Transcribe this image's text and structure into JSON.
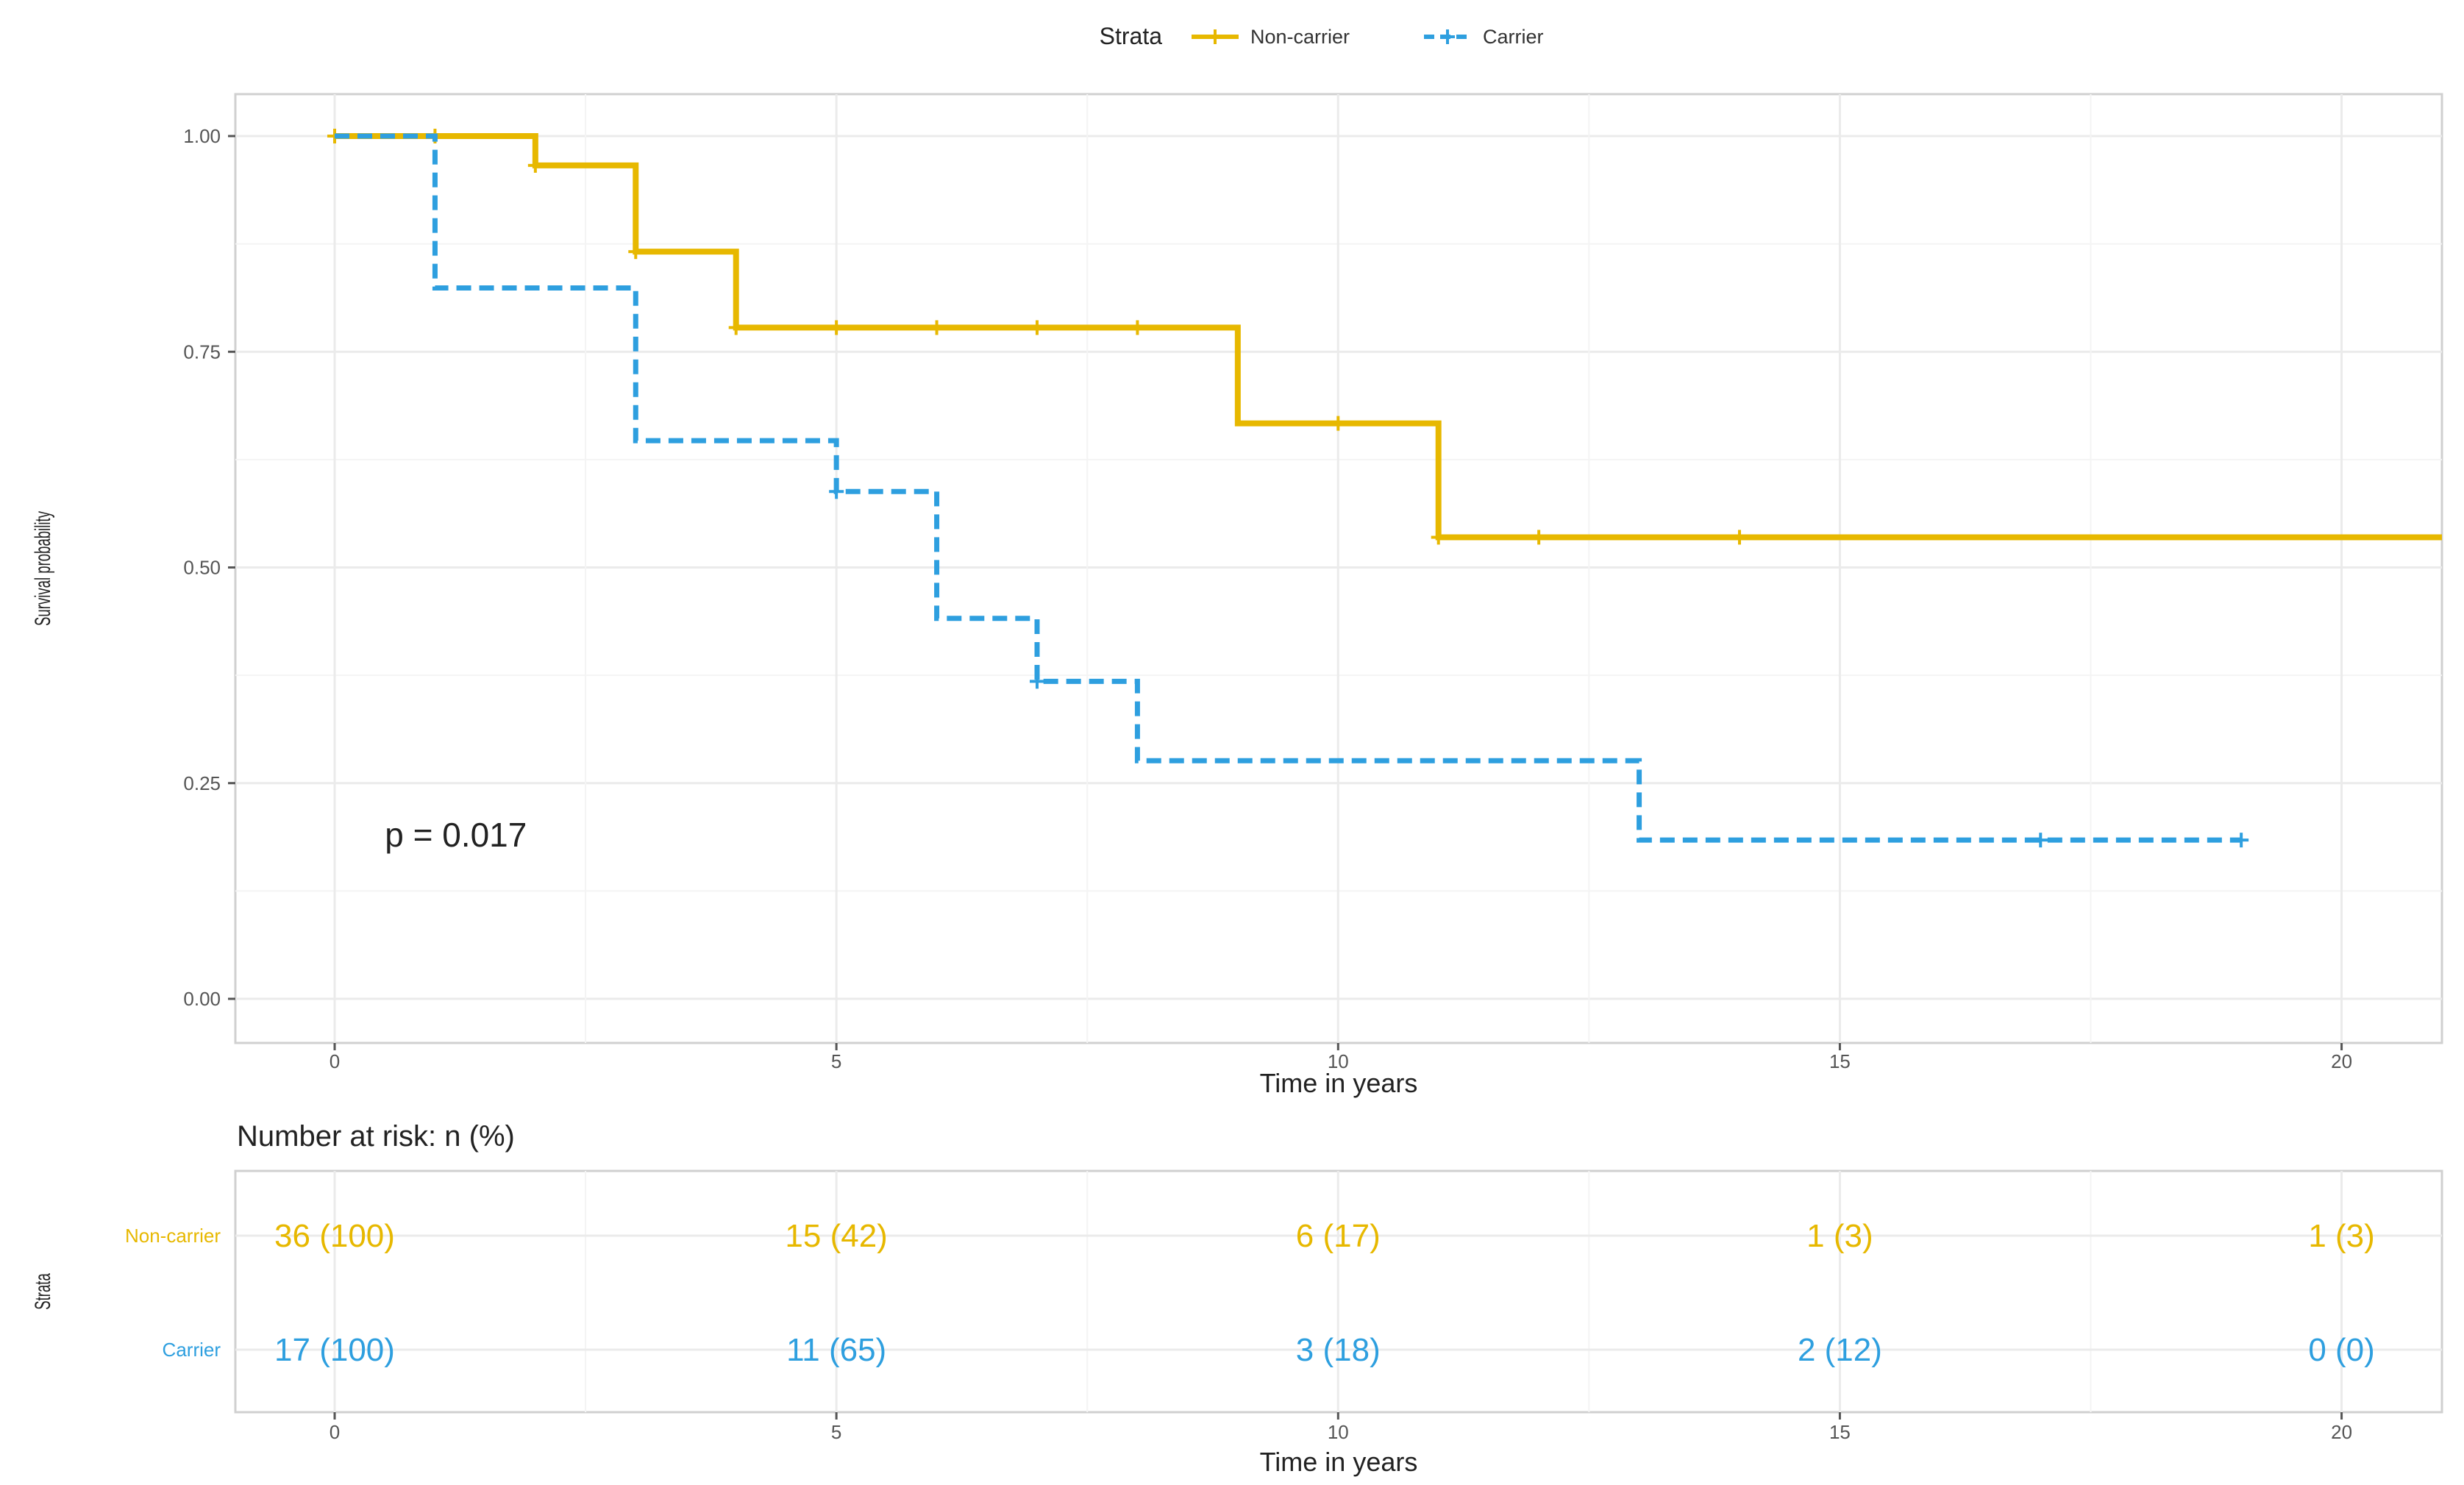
{
  "chart_data": [
    {
      "type": "line",
      "subtype": "kaplan-meier",
      "title": "",
      "xlabel": "Time in years",
      "ylabel": "Survival probability",
      "xlim": [
        0,
        21
      ],
      "ylim": [
        0,
        1
      ],
      "x_ticks": [
        0,
        5,
        10,
        15,
        20
      ],
      "y_ticks": [
        0,
        0.25,
        0.5,
        0.75,
        1
      ],
      "y_tick_labels": [
        "0.00",
        "0.25",
        "0.50",
        "0.75",
        "1.00"
      ],
      "grid": true,
      "legend": {
        "title": "Strata",
        "position": "top"
      },
      "annotation": {
        "text": "p = 0.017",
        "x": 0.5,
        "y": 0.19
      },
      "series": [
        {
          "name": "Non-carrier",
          "color": "#E7B800",
          "line_style": "solid",
          "steps": [
            [
              0,
              1.0
            ],
            [
              2,
              0.966
            ],
            [
              3,
              0.866
            ],
            [
              4,
              0.778
            ],
            [
              9,
              0.667
            ],
            [
              11,
              0.535
            ],
            [
              21,
              0.535
            ]
          ],
          "censor_marks": [
            [
              0,
              1.0
            ],
            [
              1,
              1.0
            ],
            [
              2,
              0.966
            ],
            [
              3,
              0.866
            ],
            [
              4,
              0.778
            ],
            [
              5,
              0.778
            ],
            [
              6,
              0.778
            ],
            [
              7,
              0.778
            ],
            [
              8,
              0.778
            ],
            [
              10,
              0.667
            ],
            [
              11,
              0.535
            ],
            [
              12,
              0.535
            ],
            [
              14,
              0.535
            ]
          ]
        },
        {
          "name": "Carrier",
          "color": "#2E9FDF",
          "line_style": "dashed",
          "steps": [
            [
              0,
              1.0
            ],
            [
              1,
              0.824
            ],
            [
              3,
              0.647
            ],
            [
              5,
              0.588
            ],
            [
              6,
              0.441
            ],
            [
              7,
              0.368
            ],
            [
              8,
              0.276
            ],
            [
              13,
              0.184
            ],
            [
              19,
              0.184
            ]
          ],
          "censor_marks": [
            [
              5,
              0.588
            ],
            [
              7,
              0.368
            ],
            [
              17,
              0.184
            ],
            [
              19,
              0.184
            ]
          ]
        }
      ]
    },
    {
      "type": "table",
      "title": "Number at risk: n (%)",
      "xlabel": "Time in years",
      "ylabel": "Strata",
      "x_ticks": [
        0,
        5,
        10,
        15,
        20
      ],
      "xlim": [
        0,
        21
      ],
      "rows": [
        {
          "name": "Non-carrier",
          "color": "#E7B800",
          "values": [
            "36 (100)",
            "15 (42)",
            "6 (17)",
            "1 (3)",
            "1 (3)"
          ]
        },
        {
          "name": "Carrier",
          "color": "#2E9FDF",
          "values": [
            "17 (100)",
            "11 (65)",
            "3 (18)",
            "2 (12)",
            "0 (0)"
          ]
        }
      ]
    }
  ]
}
